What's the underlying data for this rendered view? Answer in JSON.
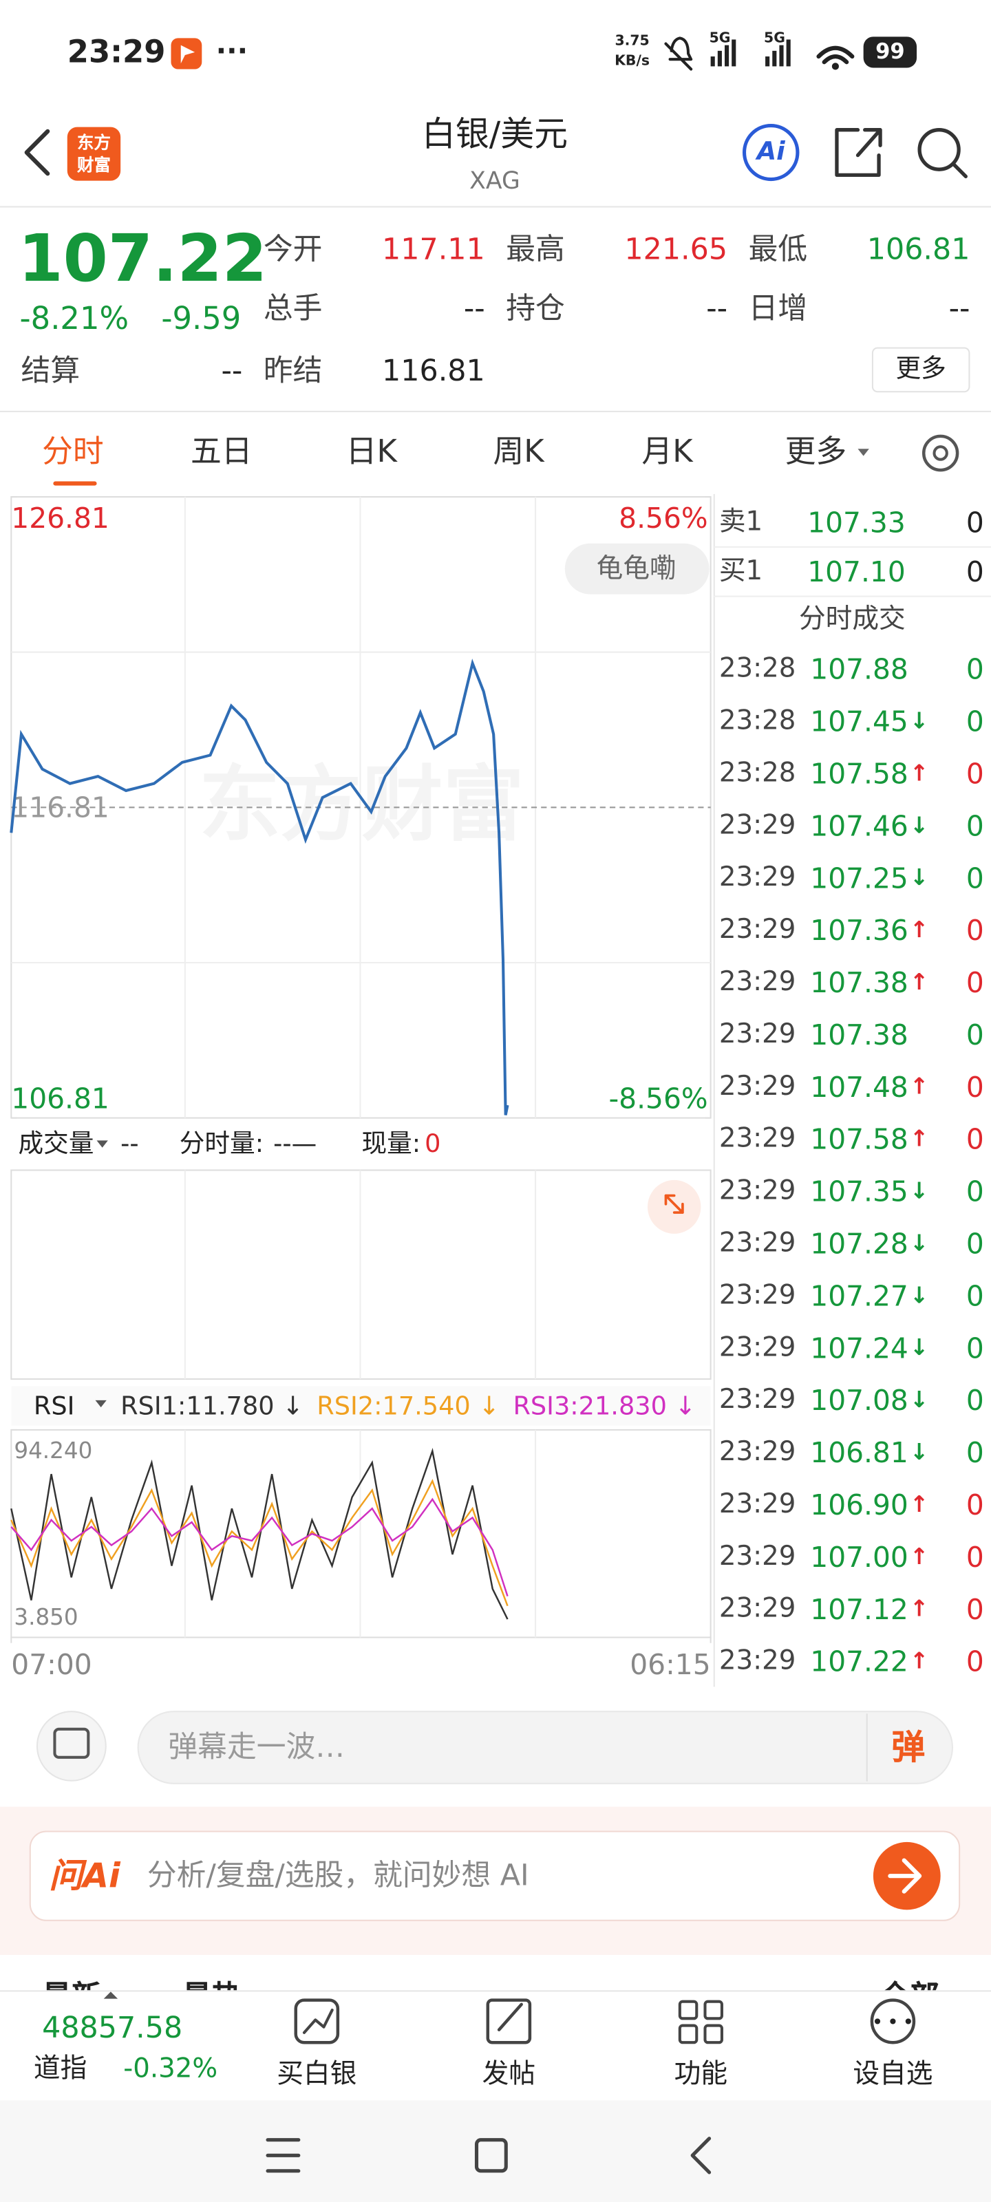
{
  "status_bar": {
    "time": "23:29",
    "dots": "···",
    "net_speed": [
      "3.75",
      "KB/s"
    ],
    "signal": [
      "5G",
      "5G"
    ],
    "battery": "99"
  },
  "header": {
    "logo": [
      "东方",
      "财富"
    ],
    "title": "白银/美元",
    "subtitle": "XAG",
    "ai": "Ai"
  },
  "quote": {
    "price": "107.22",
    "change_pct": "-8.21%",
    "change": "-9.59",
    "fields": [
      {
        "label": "今开",
        "value": "117.11"
      },
      {
        "label": "最高",
        "value": "121.65"
      },
      {
        "label": "最低",
        "value": "106.81"
      },
      {
        "label": "总手",
        "value": "--"
      },
      {
        "label": "持仓",
        "value": "--"
      },
      {
        "label": "日增",
        "value": "--"
      },
      {
        "label": "结算",
        "value": "--"
      },
      {
        "label": "昨结",
        "value": "116.81"
      }
    ],
    "more": "更多"
  },
  "tabs": [
    "分时",
    "五日",
    "日K",
    "周K",
    "月K",
    "更多"
  ],
  "chart_data": [
    {
      "type": "line",
      "watermark": "东方财富",
      "badge": "龟龟嘞",
      "color": "#2f6db5",
      "x": [
        0,
        20,
        62,
        117,
        173,
        229,
        285,
        341,
        397,
        439,
        467,
        509,
        551,
        587,
        621,
        677,
        718,
        746,
        788,
        816,
        844,
        886,
        920,
        942,
        962,
        973,
        981,
        986,
        990
      ],
      "values": [
        115.99,
        119.17,
        118.04,
        117.58,
        117.81,
        117.35,
        117.58,
        118.26,
        118.49,
        120.08,
        119.63,
        118.26,
        117.58,
        115.77,
        117.13,
        117.58,
        116.67,
        117.81,
        118.72,
        119.86,
        118.72,
        119.17,
        121.45,
        120.54,
        119.17,
        115.99,
        111.9,
        106.9,
        107.22
      ],
      "xlim": [
        0,
        1395
      ],
      "xticks": [
        {
          "value": 0,
          "label": "07:00"
        },
        {
          "value": 1395,
          "label": "06:15"
        }
      ],
      "ylim": [
        106.81,
        126.81
      ],
      "yticks": [
        106.81,
        116.81,
        126.81
      ],
      "y2lim": [
        -8.56,
        8.56
      ],
      "y2ticks": [
        {
          "value": 8.56,
          "label": "8.56%"
        },
        {
          "value": -8.56,
          "label": "-8.56%"
        }
      ]
    },
    {
      "type": "line",
      "selector": "RSI",
      "x": [
        0,
        40,
        80,
        120,
        160,
        200,
        240,
        280,
        320,
        360,
        400,
        440,
        480,
        520,
        560,
        600,
        640,
        680,
        720,
        760,
        800,
        840,
        880,
        920,
        960,
        990
      ],
      "series": [
        {
          "name": "RSI1:11.780 ↓",
          "color": "#333333",
          "values": [
            60,
            20,
            75,
            30,
            65,
            25,
            55,
            80,
            35,
            70,
            20,
            60,
            30,
            75,
            25,
            55,
            35,
            65,
            80,
            30,
            60,
            85,
            40,
            70,
            25,
            11.78
          ]
        },
        {
          "name": "RSI2:17.540 ↓",
          "color": "#f0a020",
          "values": [
            55,
            35,
            60,
            40,
            55,
            38,
            52,
            68,
            45,
            58,
            35,
            50,
            42,
            62,
            38,
            50,
            42,
            56,
            68,
            40,
            55,
            72,
            48,
            60,
            35,
            17.54
          ]
        },
        {
          "name": "RSI3:21.830 ↓",
          "color": "#d030c0",
          "values": [
            52,
            42,
            55,
            46,
            52,
            44,
            50,
            60,
            48,
            54,
            42,
            48,
            46,
            56,
            44,
            49,
            46,
            52,
            60,
            46,
            52,
            64,
            50,
            56,
            42,
            21.83
          ]
        }
      ],
      "xlim": [
        0,
        1395
      ],
      "ylim": [
        3.85,
        94.24
      ],
      "yticks": [
        {
          "value": 94.24,
          "label": "94.240"
        },
        {
          "value": 3.85,
          "label": "3.850"
        }
      ]
    }
  ],
  "volume": {
    "selector": "成交量",
    "value": "--",
    "period_label": "分时量:",
    "period_value": "--—",
    "now_label": "现量:",
    "now_value": "0"
  },
  "order_book": [
    {
      "side": "卖1",
      "price": "107.33",
      "volume": "0"
    },
    {
      "side": "买1",
      "price": "107.10",
      "volume": "0"
    }
  ],
  "trades_title": "分时成交",
  "trades": [
    {
      "time": "23:28",
      "price": "107.88",
      "volume": "0"
    },
    {
      "time": "23:28",
      "price": "107.45",
      "arrow": "↓",
      "volume": "0"
    },
    {
      "time": "23:28",
      "price": "107.58",
      "arrow": "↑",
      "volume": "0"
    },
    {
      "time": "23:29",
      "price": "107.46",
      "arrow": "↓",
      "volume": "0"
    },
    {
      "time": "23:29",
      "price": "107.25",
      "arrow": "↓",
      "volume": "0"
    },
    {
      "time": "23:29",
      "price": "107.36",
      "arrow": "↑",
      "volume": "0"
    },
    {
      "time": "23:29",
      "price": "107.38",
      "arrow": "↑",
      "volume": "0"
    },
    {
      "time": "23:29",
      "price": "107.38",
      "volume": "0"
    },
    {
      "time": "23:29",
      "price": "107.48",
      "arrow": "↑",
      "volume": "0"
    },
    {
      "time": "23:29",
      "price": "107.58",
      "arrow": "↑",
      "volume": "0"
    },
    {
      "time": "23:29",
      "price": "107.35",
      "arrow": "↓",
      "volume": "0"
    },
    {
      "time": "23:29",
      "price": "107.28",
      "arrow": "↓",
      "volume": "0"
    },
    {
      "time": "23:29",
      "price": "107.27",
      "arrow": "↓",
      "volume": "0"
    },
    {
      "time": "23:29",
      "price": "107.24",
      "arrow": "↓",
      "volume": "0"
    },
    {
      "time": "23:29",
      "price": "107.08",
      "arrow": "↓",
      "volume": "0"
    },
    {
      "time": "23:29",
      "price": "106.81",
      "arrow": "↓",
      "volume": "0"
    },
    {
      "time": "23:29",
      "price": "106.90",
      "arrow": "↑",
      "volume": "0"
    },
    {
      "time": "23:29",
      "price": "107.00",
      "arrow": "↑",
      "volume": "0"
    },
    {
      "time": "23:29",
      "price": "107.12",
      "arrow": "↑",
      "volume": "0"
    },
    {
      "time": "23:29",
      "price": "107.22",
      "arrow": "↑",
      "volume": "0"
    }
  ],
  "comment": {
    "placeholder": "弹幕走一波…",
    "button": "弹"
  },
  "ai_bar": {
    "brand": "问Ai",
    "prompt": "分析/复盘/选股，就问妙想 AI"
  },
  "feed_tabs": [
    "最新",
    "最热",
    "全部"
  ],
  "bottom_bar": {
    "index_value": "48857.58",
    "index_name": "道指",
    "index_change": "-0.32%",
    "items": [
      "买白银",
      "发帖",
      "功能",
      "设自选"
    ]
  }
}
